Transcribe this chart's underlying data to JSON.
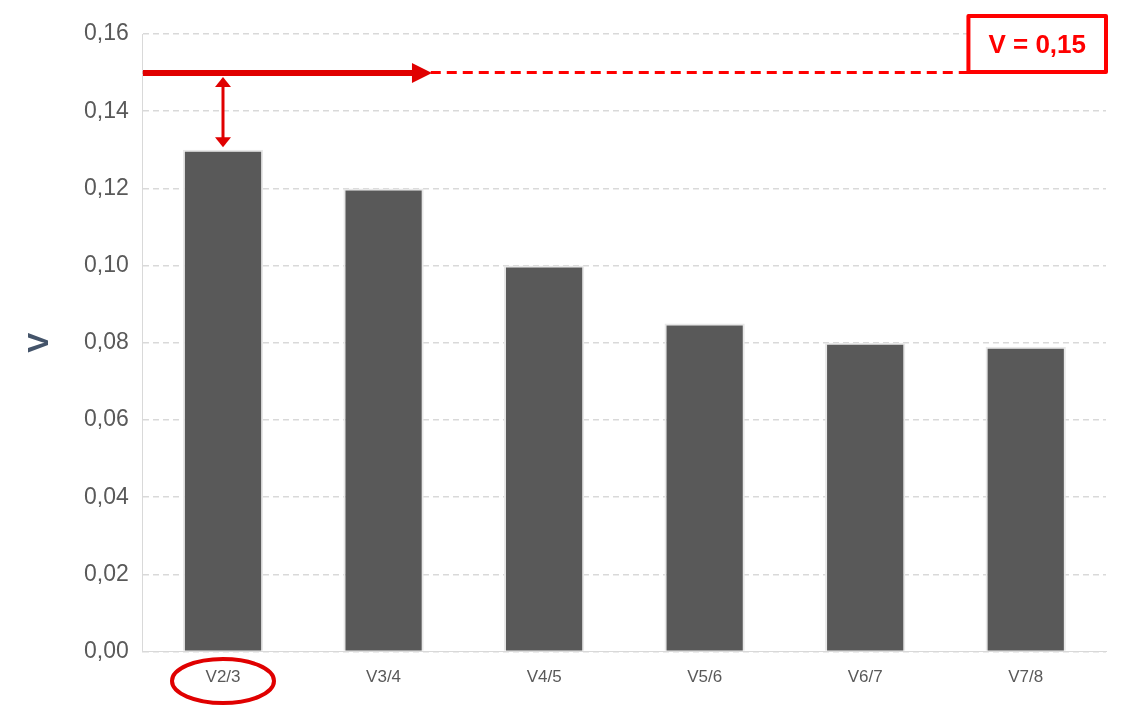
{
  "chart_data": {
    "type": "bar",
    "ylabel": "V",
    "categories": [
      "V2/3",
      "V3/4",
      "V4/5",
      "V5/6",
      "V6/7",
      "V7/8"
    ],
    "values": [
      0.13,
      0.12,
      0.1,
      0.085,
      0.08,
      0.079
    ],
    "color": "#595959",
    "ylim": [
      0,
      0.16
    ],
    "yticks": [
      {
        "value": 0,
        "label": "0,00"
      },
      {
        "value": 0.02,
        "label": "0,02"
      },
      {
        "value": 0.04,
        "label": "0,04"
      },
      {
        "value": 0.06,
        "label": "0,06"
      },
      {
        "value": 0.08,
        "label": "0,08"
      },
      {
        "value": 0.1,
        "label": "0,10"
      },
      {
        "value": 0.12,
        "label": "0,12"
      },
      {
        "value": 0.14,
        "label": "0,14"
      },
      {
        "value": 0.16,
        "label": "0,16"
      }
    ],
    "grid": "y",
    "ref_lines": [
      {
        "axis": "y",
        "value": 0.15,
        "label": "V = 0,15",
        "color": "#ff0000",
        "line_style": "dashed"
      }
    ],
    "legend": false
  }
}
